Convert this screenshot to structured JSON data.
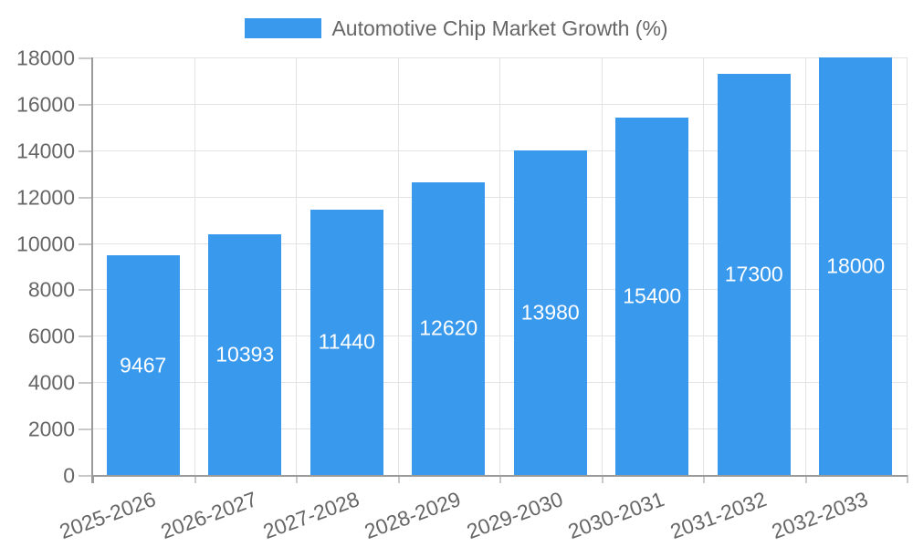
{
  "legend": {
    "label": "Automotive Chip Market Growth (%)"
  },
  "chart_data": {
    "type": "bar",
    "title": "",
    "series_name": "Automotive Chip Market Growth (%)",
    "categories": [
      "2025-2026",
      "2026-2027",
      "2027-2028",
      "2028-2029",
      "2029-2030",
      "2030-2031",
      "2031-2032",
      "2032-2033"
    ],
    "values": [
      9467,
      10393,
      11440,
      12620,
      13980,
      15400,
      17300,
      18000
    ],
    "xlabel": "",
    "ylabel": "",
    "ylim": [
      0,
      18000
    ],
    "ytick_step": 2000,
    "grid": true,
    "legend_position": "top",
    "value_labels": "inside-center"
  },
  "colors": {
    "bar": "#3999ec",
    "grid": "#e3e3e3",
    "axis": "#9a9a9a",
    "tick_mark": "#c9c9c9",
    "tick_text": "#666666",
    "bar_label_text": "#ffffff",
    "background": "#ffffff"
  }
}
